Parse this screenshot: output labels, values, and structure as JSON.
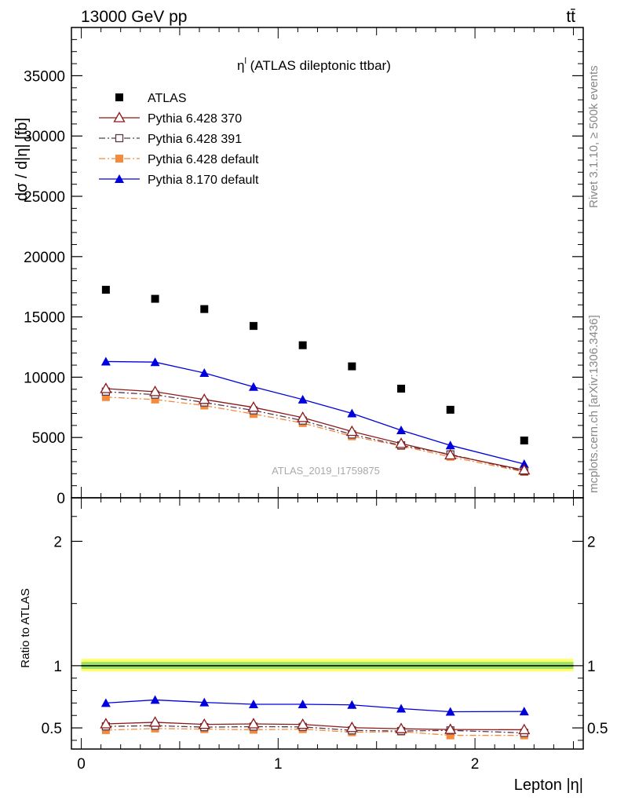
{
  "header": {
    "left": "13000 GeV pp",
    "right": "tt̄"
  },
  "side_text": {
    "rivet": "Rivet 3.1.10, ≥ 500k events",
    "mcplots": "mcplots.cern.ch [arXiv:1306.3436]"
  },
  "chart_data": [
    {
      "type": "line",
      "panel": "main",
      "title": "η^l (ATLAS dileptonic ttbar)",
      "title_main": "η",
      "title_sup": "l",
      "title_rest": " (ATLAS dileptonic ttbar)",
      "ylabel": "dσ / d|η| [fb]",
      "xlabel": "",
      "watermark": "ATLAS_2019_I1759875",
      "xlim": [
        -0.05,
        2.55
      ],
      "ylim": [
        0,
        39000
      ],
      "yticks": [
        0,
        5000,
        10000,
        15000,
        20000,
        25000,
        30000,
        35000
      ],
      "ytick_labels": [
        "0",
        "5000",
        "10000",
        "15000",
        "20000",
        "25000",
        "30000",
        "35000"
      ],
      "x": [
        0.125,
        0.375,
        0.625,
        0.875,
        1.125,
        1.375,
        1.625,
        1.875,
        2.25
      ],
      "legend_position": "top-left",
      "series": [
        {
          "name": "ATLAS",
          "color": "#000000",
          "marker": "square",
          "line": "none",
          "values": [
            17250,
            16500,
            15650,
            14250,
            12650,
            10900,
            9050,
            7300,
            4750
          ]
        },
        {
          "name": "Pythia 6.428 370",
          "color": "#8b1a1a",
          "marker": "triangle-open",
          "line": "solid",
          "values": [
            9050,
            8800,
            8150,
            7500,
            6650,
            5500,
            4500,
            3550,
            2300
          ]
        },
        {
          "name": "Pythia 6.428 391",
          "color": "#5a3a4a",
          "marker": "square-open",
          "line": "dashdot",
          "values": [
            8800,
            8550,
            7900,
            7250,
            6400,
            5250,
            4350,
            3600,
            2200
          ]
        },
        {
          "name": "Pythia 6.428 default",
          "color": "#f58a3c",
          "marker": "square",
          "line": "dashdot",
          "values": [
            8350,
            8150,
            7650,
            6950,
            6200,
            5100,
            4300,
            3400,
            2150
          ]
        },
        {
          "name": "Pythia 8.170 default",
          "color": "#0000dd",
          "marker": "triangle",
          "line": "solid",
          "values": [
            11300,
            11250,
            10350,
            9200,
            8150,
            7000,
            5600,
            4350,
            2800
          ]
        }
      ]
    },
    {
      "type": "line",
      "panel": "ratio",
      "ylabel": "Ratio to ATLAS",
      "xlabel": "Lepton |η|",
      "xlim": [
        -0.05,
        2.55
      ],
      "ylim": [
        0.33,
        2.35
      ],
      "yticks": [
        0.5,
        1,
        2
      ],
      "ytick_labels": [
        "0.5",
        "1",
        "2"
      ],
      "xticks": [
        0,
        1,
        2
      ],
      "xtick_labels": [
        "0",
        "1",
        "2"
      ],
      "x": [
        0.125,
        0.375,
        0.625,
        0.875,
        1.125,
        1.375,
        1.625,
        1.875,
        2.25
      ],
      "reference": 1,
      "band_outer": [
        0.955,
        1.055
      ],
      "band_inner": [
        0.975,
        1.03
      ],
      "series": [
        {
          "name": "Pythia 6.428 370",
          "color": "#8b1a1a",
          "marker": "triangle-open",
          "line": "solid",
          "values": [
            0.532,
            0.545,
            0.528,
            0.532,
            0.528,
            0.502,
            0.493,
            0.487,
            0.485
          ]
        },
        {
          "name": "Pythia 6.428 391",
          "color": "#5a3a4a",
          "marker": "square-open",
          "line": "dashdot",
          "values": [
            0.512,
            0.518,
            0.506,
            0.51,
            0.508,
            0.48,
            0.475,
            0.48,
            0.46
          ]
        },
        {
          "name": "Pythia 6.428 default",
          "color": "#f58a3c",
          "marker": "square",
          "line": "dashdot",
          "values": [
            0.482,
            0.495,
            0.49,
            0.485,
            0.49,
            0.465,
            0.47,
            0.44,
            0.44
          ]
        },
        {
          "name": "Pythia 8.170 default",
          "color": "#0000dd",
          "marker": "triangle",
          "line": "solid",
          "values": [
            0.7,
            0.725,
            0.705,
            0.69,
            0.69,
            0.685,
            0.655,
            0.63,
            0.632
          ]
        }
      ]
    }
  ]
}
